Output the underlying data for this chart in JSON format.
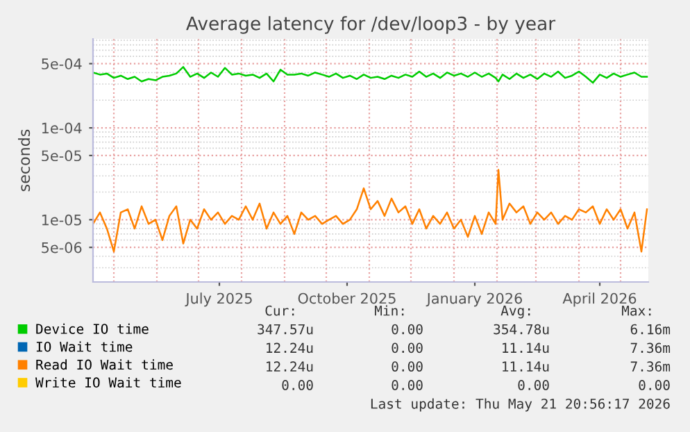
{
  "chart_data": {
    "type": "line",
    "title": "Average latency for /dev/loop3 - by year",
    "ylabel": "seconds",
    "log": "y",
    "grid": true,
    "legend": "bottom",
    "marker": "none",
    "line_style": "solid",
    "xlim": [
      "2025-04-16",
      "2026-05-21"
    ],
    "xticks": [
      {
        "value": "2025-07-16",
        "label": "July 2025"
      },
      {
        "value": "2025-10-16",
        "label": "October 2025"
      },
      {
        "value": "2026-01-16",
        "label": "January 2026"
      },
      {
        "value": "2026-04-16",
        "label": "April 2026"
      }
    ],
    "ylim": [
      2.1e-06,
      0.00093
    ],
    "yticks": [
      {
        "value": 5e-06,
        "label": "5e-06"
      },
      {
        "value": 1e-05,
        "label": "1e-05"
      },
      {
        "value": 5e-05,
        "label": "5e-05"
      },
      {
        "value": 0.0001,
        "label": "1e-04"
      },
      {
        "value": 0.0005,
        "label": "5e-04"
      }
    ],
    "x": [
      "2025-04-16",
      "2025-04-21",
      "2025-04-26",
      "2025-05-01",
      "2025-05-06",
      "2025-05-11",
      "2025-05-16",
      "2025-05-21",
      "2025-05-26",
      "2025-05-31",
      "2025-06-05",
      "2025-06-10",
      "2025-06-15",
      "2025-06-20",
      "2025-06-25",
      "2025-06-30",
      "2025-07-05",
      "2025-07-10",
      "2025-07-15",
      "2025-07-20",
      "2025-07-25",
      "2025-07-30",
      "2025-08-04",
      "2025-08-09",
      "2025-08-14",
      "2025-08-19",
      "2025-08-24",
      "2025-08-29",
      "2025-09-03",
      "2025-09-08",
      "2025-09-13",
      "2025-09-18",
      "2025-09-23",
      "2025-09-28",
      "2025-10-03",
      "2025-10-08",
      "2025-10-13",
      "2025-10-18",
      "2025-10-23",
      "2025-10-28",
      "2025-11-02",
      "2025-11-07",
      "2025-11-12",
      "2025-11-17",
      "2025-11-22",
      "2025-11-27",
      "2025-12-02",
      "2025-12-07",
      "2025-12-12",
      "2025-12-17",
      "2025-12-22",
      "2025-12-27",
      "2026-01-01",
      "2026-01-06",
      "2026-01-11",
      "2026-01-16",
      "2026-01-21",
      "2026-01-26",
      "2026-01-31",
      "2026-02-02",
      "2026-02-05",
      "2026-02-10",
      "2026-02-15",
      "2026-02-20",
      "2026-02-25",
      "2026-03-02",
      "2026-03-07",
      "2026-03-12",
      "2026-03-17",
      "2026-03-22",
      "2026-03-27",
      "2026-04-01",
      "2026-04-06",
      "2026-04-11",
      "2026-04-16",
      "2026-04-21",
      "2026-04-26",
      "2026-05-01",
      "2026-05-06",
      "2026-05-11",
      "2026-05-16",
      "2026-05-20"
    ],
    "series": [
      {
        "name": "Device IO time",
        "color": "#00cc00",
        "values": [
          0.0004,
          0.00038,
          0.00039,
          0.00035,
          0.00037,
          0.00034,
          0.00036,
          0.00032,
          0.00034,
          0.00033,
          0.00036,
          0.00037,
          0.00039,
          0.00046,
          0.00036,
          0.00039,
          0.00035,
          0.0004,
          0.00036,
          0.00045,
          0.00038,
          0.00039,
          0.00037,
          0.00038,
          0.00035,
          0.00039,
          0.00032,
          0.00043,
          0.00038,
          0.00038,
          0.00039,
          0.00037,
          0.0004,
          0.00038,
          0.00036,
          0.00039,
          0.00035,
          0.00037,
          0.00034,
          0.00038,
          0.00035,
          0.00036,
          0.00034,
          0.00037,
          0.00035,
          0.00038,
          0.00036,
          0.00041,
          0.00036,
          0.00039,
          0.00035,
          0.0004,
          0.00037,
          0.00039,
          0.00036,
          0.0004,
          0.00036,
          0.00039,
          0.00035,
          0.00032,
          0.00038,
          0.00034,
          0.00039,
          0.00035,
          0.00038,
          0.00034,
          0.00039,
          0.00036,
          0.00041,
          0.00035,
          0.00037,
          0.00041,
          0.00036,
          0.00031,
          0.00038,
          0.00035,
          0.00039,
          0.00036,
          0.00038,
          0.0004,
          0.00036,
          0.00036
        ]
      },
      {
        "name": "IO Wait time",
        "color": "#0066b3",
        "values": [
          null,
          null,
          null,
          null,
          null,
          null,
          null,
          null,
          null,
          null,
          null,
          null,
          null,
          null,
          null,
          null,
          null,
          null,
          null,
          null,
          null,
          null,
          null,
          null,
          null,
          null,
          null,
          null,
          null,
          null,
          null,
          null,
          null,
          null,
          null,
          null,
          null,
          null,
          null,
          null,
          null,
          null,
          null,
          null,
          null,
          null,
          null,
          null,
          null,
          null,
          null,
          null,
          null,
          null,
          null,
          null,
          null,
          null,
          null,
          null,
          null,
          null,
          null,
          null,
          null,
          null,
          null,
          null,
          null,
          null,
          null,
          null,
          null,
          null,
          null,
          null,
          null,
          null,
          null,
          null,
          null,
          null
        ]
      },
      {
        "name": "Read IO Wait time",
        "color": "#ff8000",
        "values": [
          9e-06,
          1.2e-05,
          8e-06,
          4.5e-06,
          1.2e-05,
          1.3e-05,
          8e-06,
          1.4e-05,
          9e-06,
          1e-05,
          6e-06,
          1.1e-05,
          1.4e-05,
          5.5e-06,
          1e-05,
          8e-06,
          1.3e-05,
          1e-05,
          1.2e-05,
          9e-06,
          1.1e-05,
          1e-05,
          1.4e-05,
          1e-05,
          1.5e-05,
          8e-06,
          1.2e-05,
          9e-06,
          1.1e-05,
          7e-06,
          1.2e-05,
          1e-05,
          1.1e-05,
          9e-06,
          1e-05,
          1.1e-05,
          9e-06,
          1e-05,
          1.3e-05,
          2.2e-05,
          1.3e-05,
          1.6e-05,
          1.1e-05,
          1.7e-05,
          1.2e-05,
          1.4e-05,
          9e-06,
          1.3e-05,
          8e-06,
          1.1e-05,
          9e-06,
          1.2e-05,
          8e-06,
          1e-05,
          6.5e-06,
          1.1e-05,
          7e-06,
          1.2e-05,
          9e-06,
          3.5e-05,
          1e-05,
          1.5e-05,
          1.2e-05,
          1.4e-05,
          9e-06,
          1.2e-05,
          1e-05,
          1.2e-05,
          9e-06,
          1.1e-05,
          1e-05,
          1.3e-05,
          1.2e-05,
          1.4e-05,
          9e-06,
          1.3e-05,
          1e-05,
          1.3e-05,
          8e-06,
          1.2e-05,
          4.5e-06,
          1.3e-05
        ]
      },
      {
        "name": "Write IO Wait time",
        "color": "#ffcc00",
        "values": [
          null,
          null,
          null,
          null,
          null,
          null,
          null,
          null,
          null,
          null,
          null,
          null,
          null,
          null,
          null,
          null,
          null,
          null,
          null,
          null,
          null,
          null,
          null,
          null,
          null,
          null,
          null,
          null,
          null,
          null,
          null,
          null,
          null,
          null,
          null,
          null,
          null,
          null,
          null,
          null,
          null,
          null,
          null,
          null,
          null,
          null,
          null,
          null,
          null,
          null,
          null,
          null,
          null,
          null,
          null,
          null,
          null,
          null,
          null,
          null,
          null,
          null,
          null,
          null,
          null,
          null,
          null,
          null,
          null,
          null,
          null,
          null,
          null,
          null,
          null,
          null,
          null,
          null,
          null,
          null,
          null,
          null
        ]
      }
    ],
    "annotations": [
      "Cur:",
      "Min:",
      "Avg:",
      "Max:",
      "347.57u",
      "0.00",
      "354.78u",
      "6.16m",
      "12.24u",
      "0.00",
      "11.14u",
      "7.36m",
      "12.24u",
      "0.00",
      "11.14u",
      "7.36m",
      "0.00",
      "0.00",
      "0.00",
      "0.00",
      "Last update: Thu May 21 20:56:17 2026"
    ]
  }
}
